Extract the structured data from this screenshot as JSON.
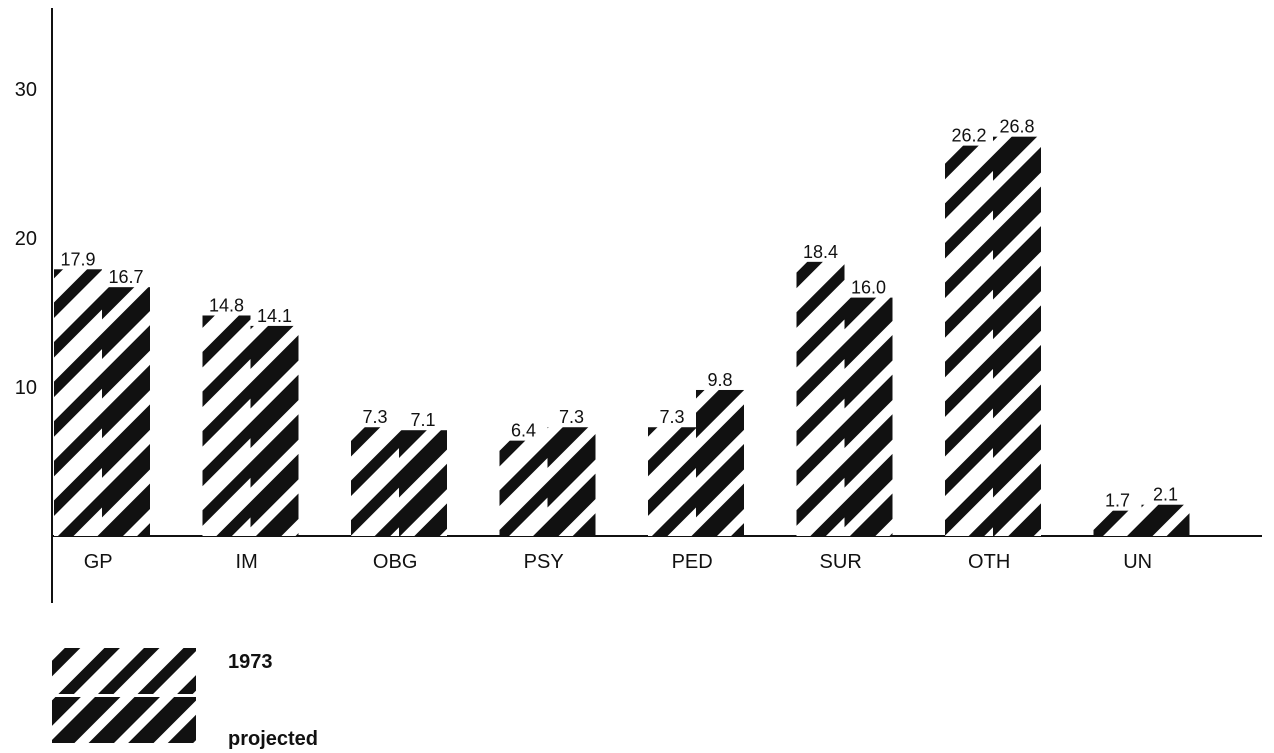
{
  "chart_data": {
    "type": "bar",
    "title": "",
    "xlabel": "",
    "ylabel": "",
    "categories": [
      "GP",
      "IM",
      "OBG",
      "PSY",
      "PED",
      "SUR",
      "OTH",
      "UN"
    ],
    "series": [
      {
        "name": "1973",
        "values": [
          17.9,
          14.8,
          7.3,
          6.4,
          7.3,
          18.4,
          26.2,
          1.7
        ],
        "labels": [
          "17.9",
          "14.8",
          "7.3",
          "6.4",
          "7.3",
          "18.4",
          "26.2",
          "1.7"
        ],
        "pattern": "diagonal-stripes-light"
      },
      {
        "name": "projected",
        "values": [
          16.7,
          14.1,
          7.1,
          7.3,
          9.8,
          16.0,
          26.8,
          2.1
        ],
        "labels": [
          "16.7",
          "14.1",
          "7.1",
          "7.3",
          "9.8",
          "16.0",
          "26.8",
          "2.1"
        ],
        "pattern": "diagonal-stripes-dark"
      }
    ],
    "yticks": [
      10,
      20,
      30
    ],
    "ytick_labels": [
      "10",
      "20",
      "30"
    ],
    "ylim": [
      0,
      34
    ],
    "grid": false,
    "legend_position": "bottom-left",
    "colors": {
      "ink": "#111111",
      "paper": "#ffffff"
    }
  }
}
